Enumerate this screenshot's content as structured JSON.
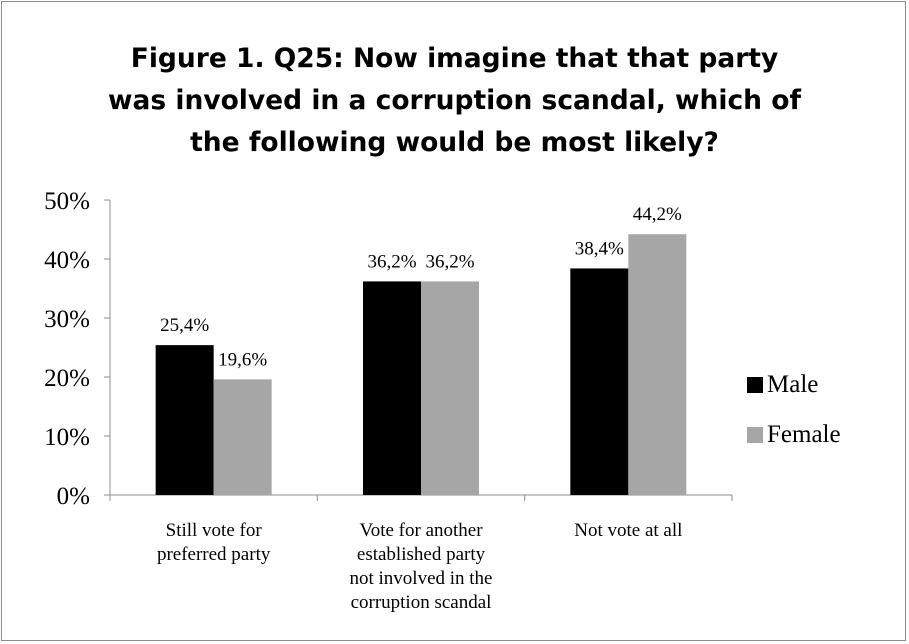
{
  "chart_data": {
    "type": "bar",
    "title_lines": [
      "Figure 1. Q25: Now imagine that that party",
      "was involved in a corruption scandal, which of",
      "the following would be most likely?"
    ],
    "categories": [
      [
        "Still vote for",
        "preferred party"
      ],
      [
        "Vote for another",
        "established party",
        "not involved in the",
        "corruption scandal"
      ],
      [
        "Not vote at all"
      ]
    ],
    "series": [
      {
        "name": "Male",
        "color": "#000000",
        "values": [
          25.4,
          36.2,
          38.4
        ],
        "labels": [
          "25,4%",
          "36,2%",
          "38,4%"
        ]
      },
      {
        "name": "Female",
        "color": "#a6a6a6",
        "values": [
          19.6,
          36.2,
          44.2
        ],
        "labels": [
          "19,6%",
          "36,2%",
          "44,2%"
        ]
      }
    ],
    "ylim": [
      0,
      50
    ],
    "yticks": [
      0,
      10,
      20,
      30,
      40,
      50
    ],
    "ytick_labels": [
      "0%",
      "10%",
      "20%",
      "30%",
      "40%",
      "50%"
    ],
    "grid": false,
    "legend_position": "right"
  }
}
